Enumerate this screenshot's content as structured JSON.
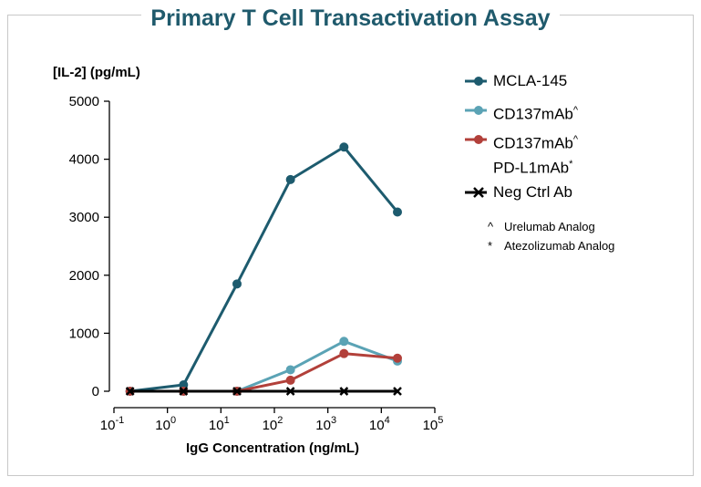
{
  "chart_data": {
    "type": "line",
    "title": "Primary T Cell Transactivation Assay",
    "ylabel": "[IL-2] (pg/mL)",
    "xlabel": "IgG Concentration (ng/mL)",
    "xscale": "log",
    "xlim": [
      0.1,
      100000
    ],
    "ylim": [
      0,
      5000
    ],
    "yticks": [
      "0",
      "1000",
      "2000",
      "3000",
      "4000",
      "5000"
    ],
    "yticks_values": [
      0,
      1000,
      2000,
      3000,
      4000,
      5000
    ],
    "xticks": [
      {
        "base": "10",
        "exp": "-1",
        "value": 0.1
      },
      {
        "base": "10",
        "exp": "0",
        "value": 1
      },
      {
        "base": "10",
        "exp": "1",
        "value": 10
      },
      {
        "base": "10",
        "exp": "2",
        "value": 100
      },
      {
        "base": "10",
        "exp": "3",
        "value": 1000
      },
      {
        "base": "10",
        "exp": "4",
        "value": 10000
      },
      {
        "base": "10",
        "exp": "5",
        "value": 100000
      }
    ],
    "x": [
      0.2,
      2,
      20,
      200,
      2000,
      20000
    ],
    "series": [
      {
        "name": "MCLA-145",
        "color": "#1d5b6e",
        "marker": "circle",
        "values": [
          0,
          110,
          1850,
          3650,
          4210,
          3090
        ]
      },
      {
        "name": "CD137mAb^",
        "color": "#5ba3b5",
        "marker": "circle",
        "values": [
          0,
          0,
          0,
          370,
          860,
          520
        ]
      },
      {
        "name": "CD137mAb^ PD-L1mAb*",
        "color": "#b2403a",
        "marker": "circle",
        "values": [
          0,
          0,
          0,
          190,
          650,
          570
        ]
      },
      {
        "name": "Neg Ctrl Ab",
        "color": "#000000",
        "marker": "x",
        "values": [
          0,
          0,
          0,
          0,
          0,
          0
        ]
      }
    ]
  },
  "legend": {
    "items": [
      {
        "label": "MCLA-145",
        "color": "#1d5b6e",
        "marker": "circle"
      },
      {
        "label": "CD137mAb",
        "sup": "^",
        "color": "#5ba3b5",
        "marker": "circle"
      },
      {
        "label": "CD137mAb",
        "sup": "^",
        "label2": "PD-L1mAb",
        "sup2": "*",
        "color": "#b2403a",
        "marker": "circle"
      },
      {
        "label": "Neg Ctrl Ab",
        "color": "#000000",
        "marker": "x"
      }
    ],
    "notes": [
      {
        "symbol": "^",
        "text": "Urelumab Analog"
      },
      {
        "symbol": "*",
        "text": "Atezolizumab Analog"
      }
    ]
  }
}
